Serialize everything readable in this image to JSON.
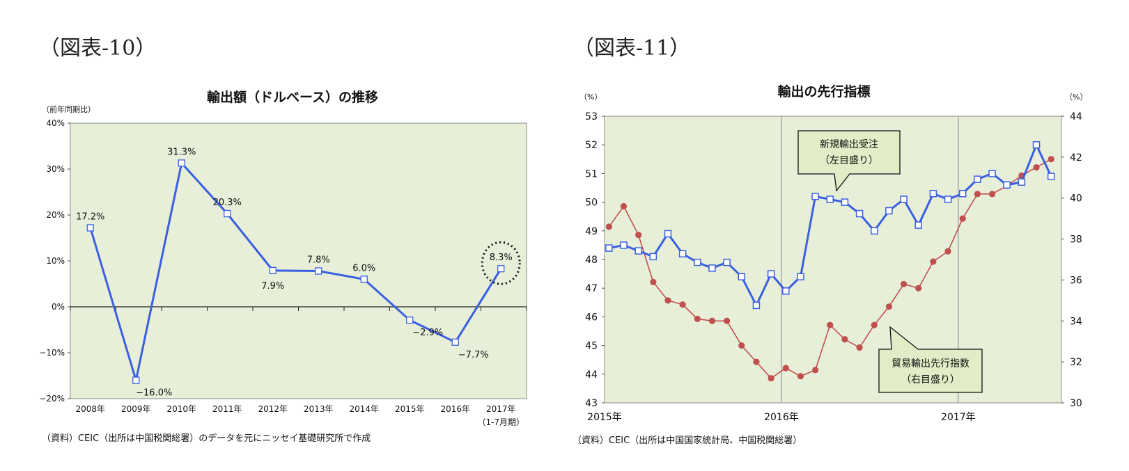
{
  "left": {
    "figure_label": "（図表-10）",
    "source": "（資料）CEIC（出所は中国税関総署）のデータを元にニッセイ基礎研究所で作成",
    "unit": "（前年同期比）",
    "highlight_note": "dotted circle around last point (8.3%)"
  },
  "right": {
    "figure_label": "（図表-11）",
    "source": "（資料）CEIC（出所は中国国家統計局、中国税関総署）",
    "left_unit": "（%）",
    "right_unit": "（%）",
    "callout_blue": [
      "新規輸出受注",
      "（左目盛り）"
    ],
    "callout_red": [
      "貿易輸出先行指数",
      "（右目盛り）"
    ]
  },
  "chart_data": [
    {
      "type": "line",
      "title": "輸出額（ドルベース）の推移",
      "categories": [
        "2008年",
        "2009年",
        "2010年",
        "2011年",
        "2012年",
        "2013年",
        "2014年",
        "2015年",
        "2016年",
        "2017年"
      ],
      "category_sublabels": [
        "",
        "",
        "",
        "",
        "",
        "",
        "",
        "",
        "",
        "（1-7月期）"
      ],
      "series": [
        {
          "values": [
            17.2,
            -16.0,
            31.3,
            20.3,
            7.9,
            7.8,
            6.0,
            -2.9,
            -7.7,
            8.3
          ],
          "data_labels": [
            "17.2%",
            "−16.0%",
            "31.3%",
            "20.3%",
            "7.9%",
            "7.8%",
            "6.0%",
            "−2.9%",
            "−7.7%",
            "8.3%"
          ],
          "color": "#3a5fe0"
        }
      ],
      "ylim": [
        -20,
        40
      ],
      "yticks": [
        "40%",
        "30%",
        "20%",
        "10%",
        "0%",
        "−10%",
        "−20%"
      ],
      "ytick_values": [
        40,
        30,
        20,
        10,
        0,
        -10,
        -20
      ],
      "background": "#e7efd9",
      "grid": false
    },
    {
      "type": "line",
      "title": "輸出の先行指標",
      "x_ticks": [
        "2015年",
        "2016年",
        "2017年"
      ],
      "x_tick_index": [
        0,
        12,
        24
      ],
      "vertical_lines_index": [
        12,
        24
      ],
      "ylim_left": [
        43,
        53
      ],
      "yticks_left": [
        "53",
        "52",
        "51",
        "50",
        "49",
        "48",
        "47",
        "46",
        "45",
        "44",
        "43"
      ],
      "ylim_right": [
        30,
        44
      ],
      "yticks_right": [
        "44",
        "42",
        "40",
        "38",
        "36",
        "34",
        "32",
        "30"
      ],
      "background": "#e7efd9",
      "series": [
        {
          "name": "新規輸出受注",
          "axis": "left",
          "color": "#3a5fe0",
          "values": [
            48.4,
            48.5,
            48.3,
            48.1,
            48.9,
            48.2,
            47.9,
            47.7,
            47.9,
            47.4,
            46.4,
            47.5,
            46.9,
            47.4,
            50.2,
            50.1,
            50.0,
            49.6,
            49.0,
            49.7,
            50.1,
            49.2,
            50.3,
            50.1,
            50.3,
            50.8,
            51.0,
            50.6,
            50.7,
            52.0,
            50.9
          ]
        },
        {
          "name": "貿易輸出先行指数",
          "axis": "right",
          "color": "#c0504d",
          "values": [
            38.6,
            39.6,
            38.2,
            35.9,
            35.0,
            34.8,
            34.1,
            34.0,
            34.0,
            32.8,
            32.0,
            31.2,
            31.7,
            31.3,
            31.6,
            33.8,
            33.1,
            32.7,
            33.8,
            34.7,
            35.8,
            35.6,
            36.9,
            37.4,
            39.0,
            40.2,
            40.2,
            40.6,
            41.1,
            41.5,
            41.9
          ]
        }
      ]
    }
  ]
}
